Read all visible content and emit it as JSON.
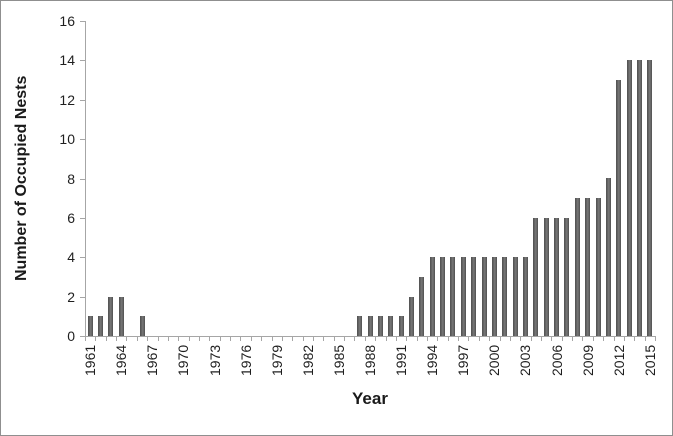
{
  "chart_data": {
    "type": "bar",
    "title": "",
    "xlabel": "Year",
    "ylabel": "Number of Occupied Nests",
    "x": [
      1961,
      1962,
      1963,
      1964,
      1965,
      1966,
      1967,
      1968,
      1969,
      1970,
      1971,
      1972,
      1973,
      1974,
      1975,
      1976,
      1977,
      1978,
      1979,
      1980,
      1981,
      1982,
      1983,
      1984,
      1985,
      1986,
      1987,
      1988,
      1989,
      1990,
      1991,
      1992,
      1993,
      1994,
      1995,
      1996,
      1997,
      1998,
      1999,
      2000,
      2001,
      2002,
      2003,
      2004,
      2005,
      2006,
      2007,
      2008,
      2009,
      2010,
      2011,
      2012,
      2013,
      2014,
      2015
    ],
    "values": [
      1,
      1,
      2,
      2,
      0,
      1,
      0,
      0,
      0,
      0,
      0,
      0,
      0,
      0,
      0,
      0,
      0,
      0,
      0,
      0,
      0,
      0,
      0,
      0,
      0,
      0,
      1,
      1,
      1,
      1,
      1,
      2,
      3,
      4,
      4,
      4,
      4,
      4,
      4,
      4,
      4,
      4,
      4,
      6,
      6,
      6,
      6,
      7,
      7,
      7,
      8,
      13,
      14,
      14,
      14
    ],
    "ylim": [
      0,
      16
    ],
    "yticks": [
      0,
      2,
      4,
      6,
      8,
      10,
      12,
      14,
      16
    ],
    "xtick_labels": [
      "1961",
      "1964",
      "1967",
      "1970",
      "1973",
      "1976",
      "1979",
      "1982",
      "1985",
      "1988",
      "1991",
      "1994",
      "1997",
      "2000",
      "2003",
      "2006",
      "2009",
      "2012",
      "2015"
    ],
    "xtick_label_step": 3,
    "grid": false,
    "legend": "none",
    "bar_color": "#595959",
    "axis_color": "#a6a6a6",
    "text_color": "#1f1f1f",
    "frame_border_color": "#8f8f8f",
    "background_color": "#ffffff"
  }
}
